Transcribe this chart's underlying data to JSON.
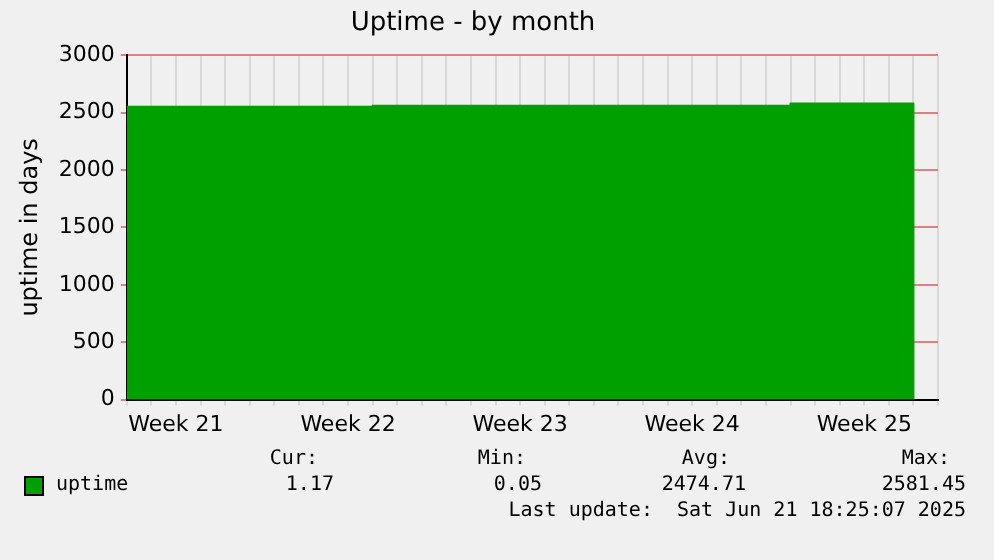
{
  "chart_data": {
    "type": "area",
    "title": "Uptime - by month",
    "ylabel": "uptime in days",
    "categories": [
      null,
      null,
      "Week 21",
      null,
      null,
      null,
      null,
      null,
      null,
      "Week 22",
      null,
      null,
      null,
      null,
      null,
      null,
      "Week 23",
      null,
      null,
      null,
      null,
      null,
      null,
      "Week 24",
      null,
      null,
      null,
      null,
      null,
      null,
      "Week 25",
      null,
      null,
      null
    ],
    "series": [
      {
        "name": "uptime",
        "color": "#00a000",
        "values": [
          2550,
          2550,
          2550,
          2550,
          2550,
          2550,
          2550,
          2550,
          2550,
          2550,
          2560,
          2560,
          2560,
          2560,
          2560,
          2560,
          2560,
          2560,
          2560,
          2560,
          2560,
          2560,
          2560,
          2560,
          2560,
          2560,
          2560,
          2580,
          2580,
          2580,
          2580,
          2580,
          1.17,
          null
        ]
      }
    ],
    "ylim": [
      0,
      3000
    ],
    "yticks": [
      0,
      500,
      1000,
      1500,
      2000,
      2500,
      3000
    ],
    "grid": true,
    "legend": "bottom",
    "annotations": [
      "Cur:",
      "Min:",
      "Avg:",
      "Max:",
      "1.17",
      "0.05",
      "2474.71",
      "2581.45",
      "Last update:  Sat Jun 21 18:25:07 2025"
    ]
  }
}
